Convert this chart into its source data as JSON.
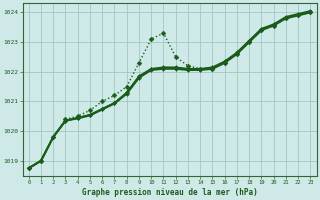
{
  "background_color": "#cfe8e8",
  "grid_color": "#a0c8c0",
  "line_color": "#1a5c1a",
  "title": "Graphe pression niveau de la mer (hPa)",
  "xlim": [
    -0.5,
    23.5
  ],
  "ylim": [
    1018.5,
    1024.3
  ],
  "yticks": [
    1019,
    1020,
    1021,
    1022,
    1023,
    1024
  ],
  "xticks": [
    0,
    1,
    2,
    3,
    4,
    5,
    6,
    7,
    8,
    9,
    10,
    11,
    12,
    13,
    14,
    15,
    16,
    17,
    18,
    19,
    20,
    21,
    22,
    23
  ],
  "series": [
    {
      "data": [
        1018.75,
        1019.0,
        1019.8,
        1020.4,
        1020.5,
        1020.7,
        1021.0,
        1021.2,
        1021.5,
        1022.3,
        1023.1,
        1023.3,
        1022.5,
        1022.2,
        1022.1,
        1022.1,
        1022.3,
        1022.6,
        1023.0,
        1023.4,
        1023.55,
        1023.8,
        1023.9,
        1024.0
      ],
      "linestyle": "dotted",
      "linewidth": 1.0,
      "markersize": 2.5
    },
    {
      "data": [
        1018.75,
        1019.0,
        1019.8,
        1020.35,
        1020.45,
        1020.55,
        1020.75,
        1020.95,
        1021.3,
        1021.85,
        1022.1,
        1022.15,
        1022.15,
        1022.1,
        1022.1,
        1022.15,
        1022.35,
        1022.65,
        1023.05,
        1023.45,
        1023.6,
        1023.85,
        1023.95,
        1024.05
      ],
      "linestyle": "solid",
      "linewidth": 1.2,
      "markersize": 2.0
    },
    {
      "data": [
        1018.75,
        1019.0,
        1019.8,
        1020.35,
        1020.44,
        1020.54,
        1020.74,
        1020.94,
        1021.28,
        1021.82,
        1022.08,
        1022.12,
        1022.12,
        1022.08,
        1022.08,
        1022.12,
        1022.32,
        1022.62,
        1023.02,
        1023.42,
        1023.58,
        1023.82,
        1023.92,
        1024.02
      ],
      "linestyle": "solid",
      "linewidth": 1.2,
      "markersize": 2.0
    },
    {
      "data": [
        1018.75,
        1019.0,
        1019.8,
        1020.35,
        1020.43,
        1020.53,
        1020.73,
        1020.93,
        1021.26,
        1021.8,
        1022.06,
        1022.1,
        1022.1,
        1022.06,
        1022.06,
        1022.1,
        1022.3,
        1022.6,
        1023.0,
        1023.4,
        1023.56,
        1023.8,
        1023.9,
        1024.0
      ],
      "linestyle": "solid",
      "linewidth": 1.5,
      "markersize": 2.0
    }
  ]
}
